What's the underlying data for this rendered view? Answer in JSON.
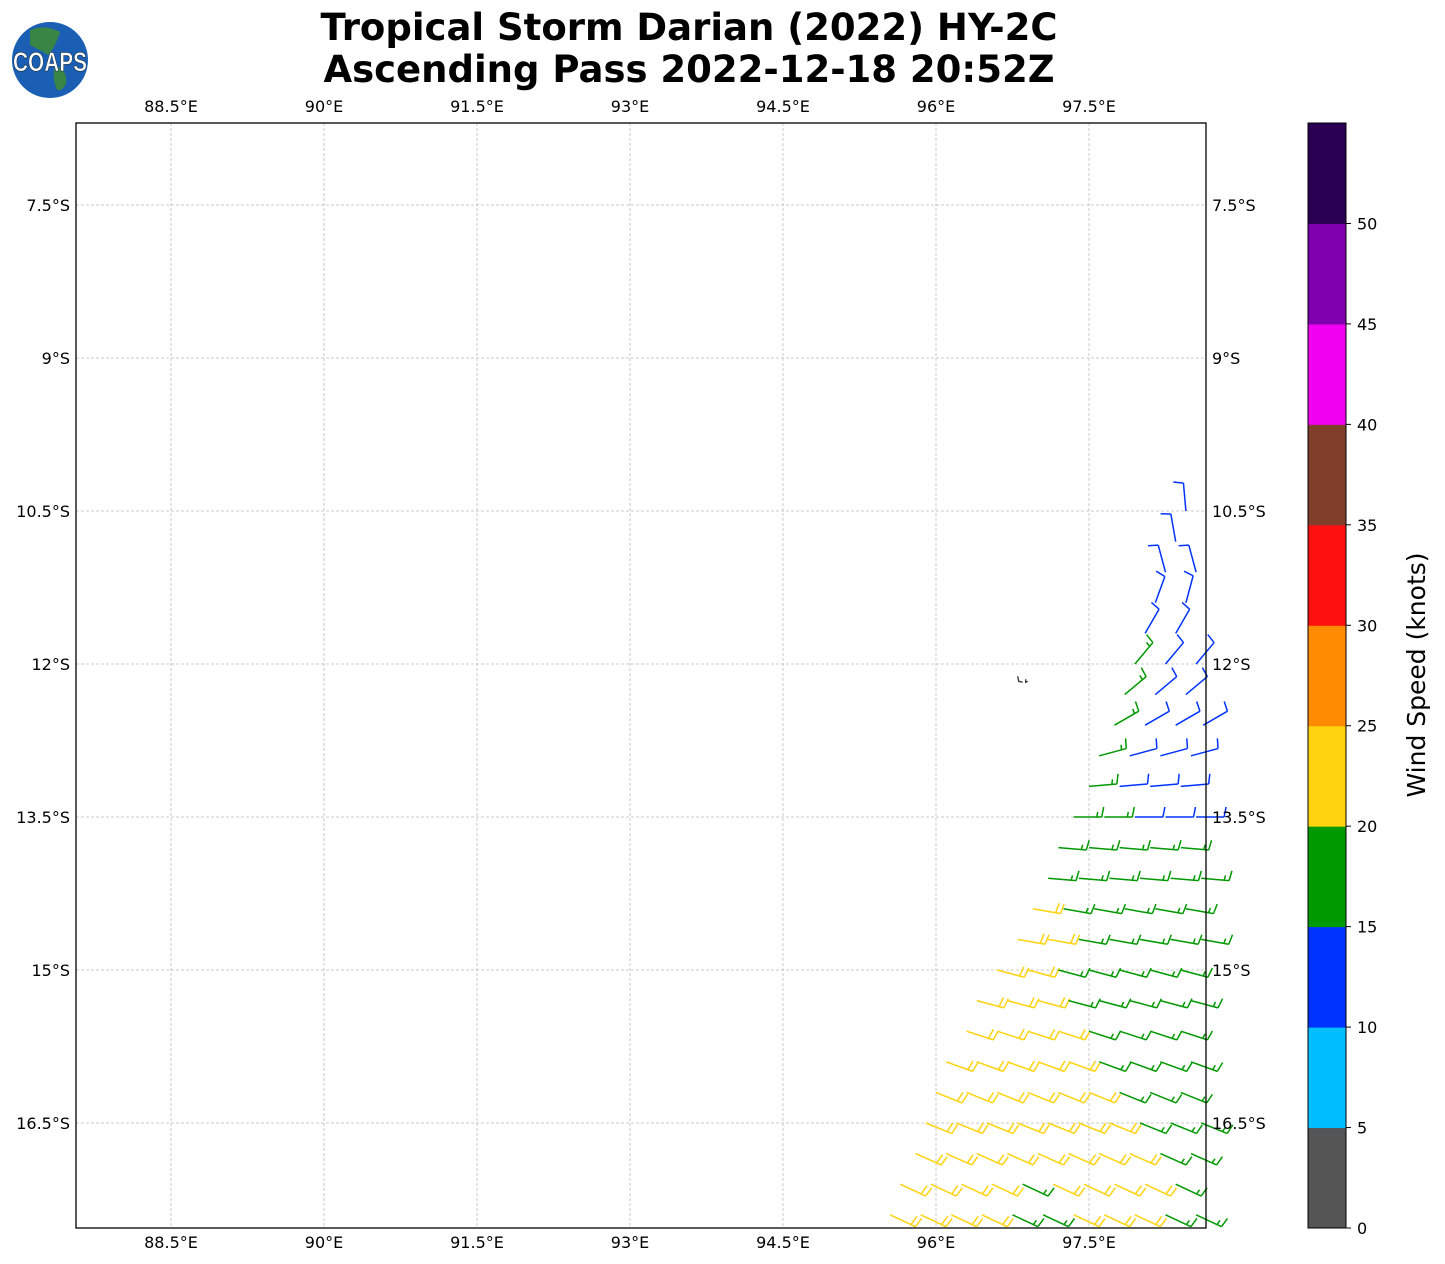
{
  "title": {
    "line1": "Tropical Storm Darian (2022) HY-2C",
    "line2": "Ascending Pass 2022-12-18 20:52Z"
  },
  "logo": {
    "text": "COAPS",
    "ocean_color": "#1a5fb4",
    "land_color": "#3d8a3a"
  },
  "map": {
    "lon_range": [
      87.57,
      98.65
    ],
    "lat_range_south": [
      6.7,
      17.53
    ],
    "lon_ticks": [
      88.5,
      90,
      91.5,
      93,
      94.5,
      96,
      97.5
    ],
    "lon_tick_labels": [
      "88.5°E",
      "90°E",
      "91.5°E",
      "93°E",
      "94.5°E",
      "96°E",
      "97.5°E"
    ],
    "lat_ticks": [
      7.5,
      9,
      10.5,
      12,
      13.5,
      15,
      16.5
    ],
    "lat_tick_labels": [
      "7.5°S",
      "9°S",
      "10.5°S",
      "12°S",
      "13.5°S",
      "15°S",
      "16.5°S"
    ],
    "gridlines": true,
    "island": {
      "lon": 96.85,
      "lat_south": 12.15
    }
  },
  "colorbar": {
    "label": "Wind Speed (knots)",
    "bounds": [
      0,
      5,
      10,
      15,
      20,
      25,
      30,
      35,
      40,
      45,
      50,
      55
    ],
    "tick_labels": [
      "0",
      "5",
      "10",
      "15",
      "20",
      "25",
      "30",
      "35",
      "40",
      "45",
      "50"
    ],
    "colors": [
      "#555555",
      "#00bfff",
      "#0033ff",
      "#009900",
      "#ffd30f",
      "#ff8c00",
      "#ff1010",
      "#7f3f2a",
      "#f000f0",
      "#8000b0",
      "#2a0055"
    ]
  },
  "barbs": [
    {
      "lat": 10.5,
      "points": [
        [
          98.45,
          12,
          355
        ]
      ]
    },
    {
      "lat": 10.8,
      "points": [
        [
          98.35,
          12,
          350
        ]
      ]
    },
    {
      "lat": 11.1,
      "points": [
        [
          98.25,
          12,
          345
        ],
        [
          98.55,
          12,
          345
        ]
      ]
    },
    {
      "lat": 11.4,
      "points": [
        [
          98.15,
          12,
          20
        ],
        [
          98.45,
          12,
          15
        ]
      ]
    },
    {
      "lat": 11.7,
      "points": [
        [
          98.05,
          12,
          30
        ],
        [
          98.35,
          12,
          30
        ]
      ]
    },
    {
      "lat": 12.0,
      "points": [
        [
          97.95,
          17,
          40
        ],
        [
          98.25,
          12,
          40
        ],
        [
          98.55,
          12,
          40
        ]
      ]
    },
    {
      "lat": 12.3,
      "points": [
        [
          97.85,
          17,
          50
        ],
        [
          98.15,
          12,
          50
        ],
        [
          98.45,
          12,
          50
        ]
      ]
    },
    {
      "lat": 12.6,
      "points": [
        [
          97.75,
          17,
          60
        ],
        [
          98.05,
          12,
          60
        ],
        [
          98.35,
          12,
          60
        ],
        [
          98.62,
          12,
          60
        ]
      ]
    },
    {
      "lat": 12.9,
      "points": [
        [
          97.6,
          17,
          75
        ],
        [
          97.9,
          12,
          75
        ],
        [
          98.2,
          12,
          75
        ],
        [
          98.5,
          12,
          75
        ]
      ]
    },
    {
      "lat": 13.2,
      "points": [
        [
          97.5,
          17,
          85
        ],
        [
          97.8,
          12,
          85
        ],
        [
          98.1,
          12,
          85
        ],
        [
          98.4,
          12,
          85
        ]
      ]
    },
    {
      "lat": 13.5,
      "points": [
        [
          97.35,
          17,
          90
        ],
        [
          97.65,
          17,
          90
        ],
        [
          97.95,
          12,
          90
        ],
        [
          98.25,
          12,
          90
        ],
        [
          98.55,
          12,
          90
        ]
      ]
    },
    {
      "lat": 13.8,
      "points": [
        [
          97.2,
          17,
          95
        ],
        [
          97.5,
          17,
          95
        ],
        [
          97.8,
          17,
          95
        ],
        [
          98.1,
          17,
          95
        ],
        [
          98.4,
          17,
          95
        ]
      ]
    },
    {
      "lat": 14.1,
      "points": [
        [
          97.1,
          17,
          95
        ],
        [
          97.4,
          17,
          95
        ],
        [
          97.7,
          17,
          95
        ],
        [
          98.0,
          17,
          95
        ],
        [
          98.3,
          17,
          95
        ],
        [
          98.6,
          17,
          95
        ]
      ]
    },
    {
      "lat": 14.4,
      "points": [
        [
          96.95,
          22,
          100
        ],
        [
          97.25,
          17,
          100
        ],
        [
          97.55,
          17,
          100
        ],
        [
          97.85,
          17,
          100
        ],
        [
          98.15,
          17,
          100
        ],
        [
          98.45,
          17,
          100
        ]
      ]
    },
    {
      "lat": 14.7,
      "points": [
        [
          96.8,
          22,
          100
        ],
        [
          97.1,
          22,
          100
        ],
        [
          97.4,
          17,
          100
        ],
        [
          97.7,
          17,
          100
        ],
        [
          98.0,
          17,
          100
        ],
        [
          98.3,
          17,
          100
        ],
        [
          98.6,
          17,
          100
        ]
      ]
    },
    {
      "lat": 15.0,
      "points": [
        [
          96.6,
          22,
          105
        ],
        [
          96.9,
          22,
          105
        ],
        [
          97.2,
          17,
          105
        ],
        [
          97.5,
          17,
          105
        ],
        [
          97.8,
          17,
          105
        ],
        [
          98.1,
          17,
          105
        ],
        [
          98.4,
          17,
          105
        ]
      ]
    },
    {
      "lat": 15.3,
      "points": [
        [
          96.4,
          22,
          105
        ],
        [
          96.7,
          22,
          105
        ],
        [
          97.0,
          22,
          105
        ],
        [
          97.3,
          17,
          105
        ],
        [
          97.6,
          17,
          105
        ],
        [
          97.9,
          17,
          105
        ],
        [
          98.2,
          17,
          105
        ],
        [
          98.5,
          17,
          105
        ]
      ]
    },
    {
      "lat": 15.6,
      "points": [
        [
          96.3,
          22,
          108
        ],
        [
          96.6,
          22,
          108
        ],
        [
          96.9,
          22,
          108
        ],
        [
          97.2,
          22,
          108
        ],
        [
          97.5,
          17,
          108
        ],
        [
          97.8,
          17,
          108
        ],
        [
          98.1,
          17,
          108
        ],
        [
          98.4,
          17,
          108
        ]
      ]
    },
    {
      "lat": 15.9,
      "points": [
        [
          96.1,
          22,
          110
        ],
        [
          96.4,
          22,
          110
        ],
        [
          96.7,
          22,
          110
        ],
        [
          97.0,
          22,
          110
        ],
        [
          97.3,
          22,
          110
        ],
        [
          97.6,
          17,
          110
        ],
        [
          97.9,
          17,
          110
        ],
        [
          98.2,
          17,
          110
        ],
        [
          98.5,
          17,
          110
        ]
      ]
    },
    {
      "lat": 16.2,
      "points": [
        [
          96.0,
          22,
          112
        ],
        [
          96.3,
          22,
          112
        ],
        [
          96.6,
          22,
          112
        ],
        [
          96.9,
          22,
          112
        ],
        [
          97.2,
          22,
          112
        ],
        [
          97.5,
          22,
          112
        ],
        [
          97.8,
          17,
          112
        ],
        [
          98.1,
          17,
          112
        ],
        [
          98.4,
          17,
          112
        ]
      ]
    },
    {
      "lat": 16.5,
      "points": [
        [
          95.9,
          22,
          112
        ],
        [
          96.2,
          22,
          112
        ],
        [
          96.5,
          22,
          112
        ],
        [
          96.8,
          22,
          112
        ],
        [
          97.1,
          22,
          112
        ],
        [
          97.4,
          22,
          112
        ],
        [
          97.7,
          22,
          112
        ],
        [
          98.0,
          17,
          112
        ],
        [
          98.3,
          17,
          112
        ],
        [
          98.6,
          17,
          112
        ]
      ]
    },
    {
      "lat": 16.8,
      "points": [
        [
          95.8,
          22,
          114
        ],
        [
          96.1,
          22,
          114
        ],
        [
          96.4,
          22,
          114
        ],
        [
          96.7,
          22,
          114
        ],
        [
          97.0,
          22,
          114
        ],
        [
          97.3,
          22,
          114
        ],
        [
          97.6,
          22,
          114
        ],
        [
          97.9,
          22,
          114
        ],
        [
          98.2,
          17,
          114
        ],
        [
          98.5,
          17,
          114
        ]
      ]
    },
    {
      "lat": 17.1,
      "points": [
        [
          95.65,
          22,
          115
        ],
        [
          95.95,
          22,
          115
        ],
        [
          96.25,
          22,
          115
        ],
        [
          96.55,
          22,
          115
        ],
        [
          96.85,
          17,
          115
        ],
        [
          97.15,
          22,
          115
        ],
        [
          97.45,
          22,
          115
        ],
        [
          97.75,
          22,
          115
        ],
        [
          98.05,
          22,
          115
        ],
        [
          98.35,
          17,
          115
        ]
      ]
    },
    {
      "lat": 17.4,
      "points": [
        [
          95.55,
          22,
          115
        ],
        [
          95.85,
          22,
          115
        ],
        [
          96.15,
          22,
          115
        ],
        [
          96.45,
          22,
          115
        ],
        [
          96.75,
          17,
          115
        ],
        [
          97.05,
          17,
          115
        ],
        [
          97.35,
          22,
          115
        ],
        [
          97.65,
          22,
          115
        ],
        [
          97.95,
          22,
          115
        ],
        [
          98.25,
          17,
          115
        ],
        [
          98.55,
          17,
          115
        ]
      ]
    }
  ]
}
